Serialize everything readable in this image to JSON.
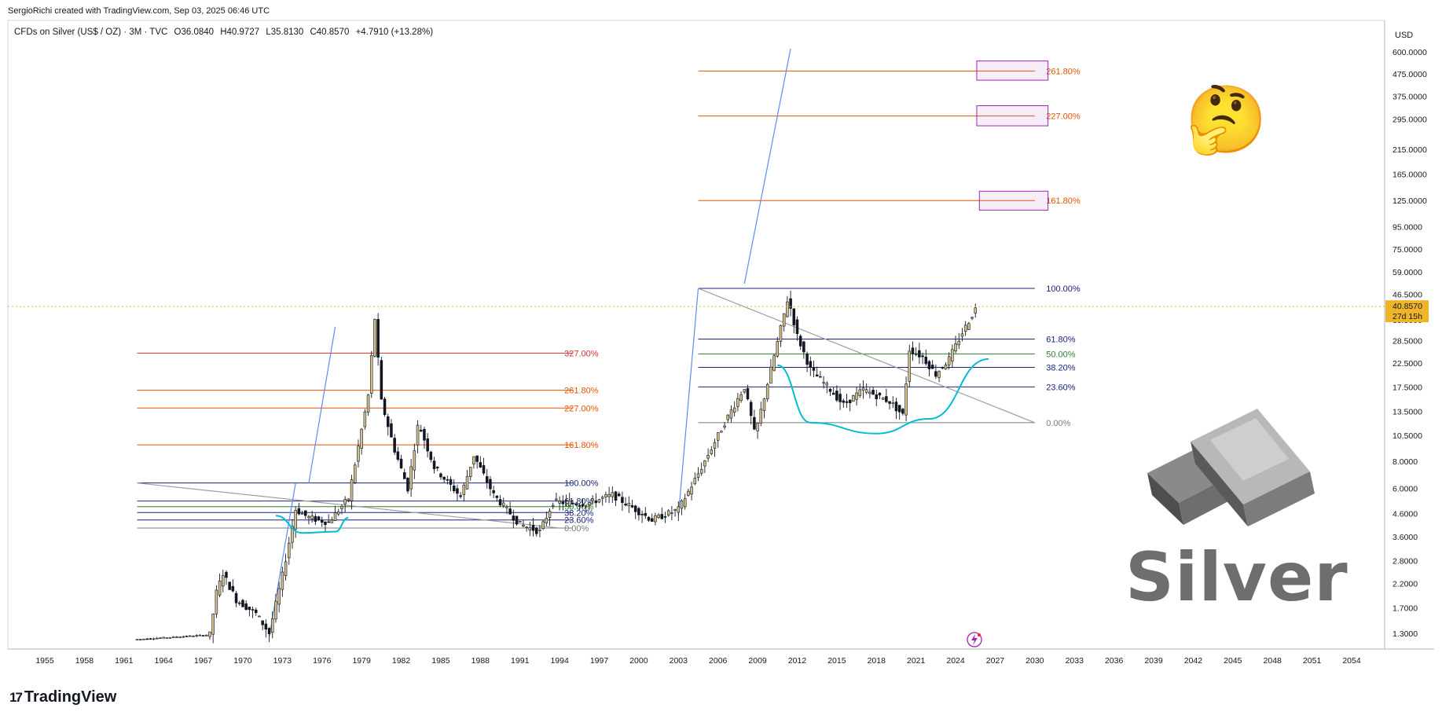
{
  "header": {
    "attribution": "SergioRichi created with TradingView.com, Sep 03, 2025 06:46 UTC"
  },
  "legend": {
    "symbol": "CFDs on Silver (US$ / OZ) · 3M · TVC",
    "open": "O36.0840",
    "high": "H40.9727",
    "low": "L35.8130",
    "close": "C40.8570",
    "change": "+4.7910 (+13.28%)"
  },
  "branding": {
    "logo_mark": "17",
    "logo_text": "TradingView",
    "watermark_word": "Silver",
    "emoji": "🤔"
  },
  "chart_data": {
    "type": "candlestick",
    "title": "CFDs on Silver (US$ / OZ) · 3M · TVC",
    "currency_label": "USD",
    "scale": "log",
    "x_ticks": [
      "1955",
      "1958",
      "1961",
      "1964",
      "1967",
      "1970",
      "1973",
      "1976",
      "1979",
      "1982",
      "1985",
      "1988",
      "1991",
      "1994",
      "1997",
      "2000",
      "2003",
      "2006",
      "2009",
      "2012",
      "2015",
      "2018",
      "2021",
      "2024",
      "2027",
      "2030",
      "2033",
      "2036",
      "2039",
      "2042",
      "2045",
      "2048",
      "2051",
      "2054"
    ],
    "y_ticks": [
      "600.0000",
      "475.0000",
      "375.0000",
      "295.0000",
      "215.0000",
      "165.0000",
      "125.0000",
      "95.0000",
      "75.0000",
      "59.0000",
      "46.5000",
      "35.5000",
      "28.5000",
      "22.5000",
      "17.5000",
      "13.5000",
      "10.5000",
      "8.0000",
      "6.0000",
      "4.6000",
      "3.6000",
      "2.8000",
      "2.2000",
      "1.7000",
      "1.3000"
    ],
    "last_price": {
      "value": "40.8570",
      "countdown": "27d 15h",
      "color": "#f0b429"
    },
    "candle_colors": {
      "up": "#d6c08a",
      "down": "#131722"
    },
    "price_path": [
      {
        "x": 1962.0,
        "y": 1.22
      },
      {
        "x": 1967.5,
        "y": 1.28
      },
      {
        "x": 1968.0,
        "y": 2.0
      },
      {
        "x": 1968.5,
        "y": 2.45
      },
      {
        "x": 1969.5,
        "y": 1.85
      },
      {
        "x": 1971.0,
        "y": 1.6
      },
      {
        "x": 1972.0,
        "y": 1.3
      },
      {
        "x": 1973.0,
        "y": 2.4
      },
      {
        "x": 1974.0,
        "y": 4.8
      },
      {
        "x": 1975.0,
        "y": 4.4
      },
      {
        "x": 1976.5,
        "y": 4.2
      },
      {
        "x": 1978.0,
        "y": 5.4
      },
      {
        "x": 1979.5,
        "y": 16.0
      },
      {
        "x": 1980.0,
        "y": 36.0
      },
      {
        "x": 1980.5,
        "y": 15.0
      },
      {
        "x": 1981.5,
        "y": 9.0
      },
      {
        "x": 1982.5,
        "y": 6.0
      },
      {
        "x": 1983.3,
        "y": 12.0
      },
      {
        "x": 1984.5,
        "y": 7.5
      },
      {
        "x": 1986.5,
        "y": 5.5
      },
      {
        "x": 1987.5,
        "y": 8.5
      },
      {
        "x": 1989.0,
        "y": 5.6
      },
      {
        "x": 1991.0,
        "y": 4.1
      },
      {
        "x": 1992.5,
        "y": 3.8
      },
      {
        "x": 1993.5,
        "y": 5.2
      },
      {
        "x": 1996.0,
        "y": 5.1
      },
      {
        "x": 1998.0,
        "y": 5.6
      },
      {
        "x": 2001.0,
        "y": 4.3
      },
      {
        "x": 2003.0,
        "y": 4.8
      },
      {
        "x": 2004.5,
        "y": 7.0
      },
      {
        "x": 2006.5,
        "y": 12.0
      },
      {
        "x": 2008.0,
        "y": 17.5
      },
      {
        "x": 2008.8,
        "y": 10.5
      },
      {
        "x": 2010.5,
        "y": 28.0
      },
      {
        "x": 2011.3,
        "y": 45.0
      },
      {
        "x": 2012.0,
        "y": 30.0
      },
      {
        "x": 2013.0,
        "y": 21.0
      },
      {
        "x": 2014.5,
        "y": 17.0
      },
      {
        "x": 2015.5,
        "y": 14.5
      },
      {
        "x": 2017.0,
        "y": 17.0
      },
      {
        "x": 2019.0,
        "y": 15.0
      },
      {
        "x": 2020.0,
        "y": 13.0
      },
      {
        "x": 2020.5,
        "y": 26.0
      },
      {
        "x": 2021.5,
        "y": 24.0
      },
      {
        "x": 2022.5,
        "y": 20.0
      },
      {
        "x": 2023.5,
        "y": 23.5
      },
      {
        "x": 2024.5,
        "y": 31.0
      },
      {
        "x": 2025.6,
        "y": 40.857
      }
    ],
    "fib_small": {
      "x_range": [
        1962,
        1995
      ],
      "label_x": 1994,
      "levels": [
        {
          "label": "327.00%",
          "price": 25.0,
          "color": "#d32f2f"
        },
        {
          "label": "261.80%",
          "price": 16.9,
          "color": "#e65100"
        },
        {
          "label": "227.00%",
          "price": 14.0,
          "color": "#e65100"
        },
        {
          "label": "161.80%",
          "price": 9.5,
          "color": "#e65100"
        },
        {
          "label": "100.00%",
          "price": 6.35,
          "color": "#1a237e"
        },
        {
          "label": "61.80%",
          "price": 5.25,
          "color": "#1a237e"
        },
        {
          "label": "50.00%",
          "price": 4.95,
          "color": "#2e7d32"
        },
        {
          "label": "38.20%",
          "price": 4.65,
          "color": "#1a237e"
        },
        {
          "label": "23.60%",
          "price": 4.3,
          "color": "#1a237e"
        },
        {
          "label": "0.00%",
          "price": 3.95,
          "color": "#787b86"
        }
      ]
    },
    "fib_big": {
      "x_range": [
        2004.5,
        2030
      ],
      "label_x": 2030.5,
      "levels": [
        {
          "label": "261.80%",
          "price": 490,
          "color": "#e65100"
        },
        {
          "label": "227.00%",
          "price": 305,
          "color": "#e65100"
        },
        {
          "label": "161.80%",
          "price": 125,
          "color": "#e65100"
        },
        {
          "label": "100.00%",
          "price": 49.5,
          "color": "#1a237e"
        },
        {
          "label": "61.80%",
          "price": 29.0,
          "color": "#1a237e"
        },
        {
          "label": "50.00%",
          "price": 24.8,
          "color": "#2e7d32"
        },
        {
          "label": "38.20%",
          "price": 21.5,
          "color": "#1a237e"
        },
        {
          "label": "23.60%",
          "price": 17.5,
          "color": "#1a237e"
        },
        {
          "label": "0.00%",
          "price": 12.0,
          "color": "#787b86"
        }
      ]
    },
    "target_boxes": [
      {
        "x": [
          2025.6,
          2031
        ],
        "y": [
          445,
          545
        ]
      },
      {
        "x": [
          2025.6,
          2031
        ],
        "y": [
          275,
          340
        ]
      },
      {
        "x": [
          2025.8,
          2031
        ],
        "y": [
          113,
          138
        ]
      }
    ],
    "trend_lines": [
      {
        "from": [
          1962.0,
          6.35
        ],
        "to": [
          1994.0,
          3.95
        ],
        "color": "#9e9e9e"
      },
      {
        "from": [
          2004.5,
          49.5
        ],
        "to": [
          2030.0,
          12.0
        ],
        "color": "#9e9e9e"
      },
      {
        "from": [
          1972.0,
          1.25
        ],
        "to": [
          1974.0,
          6.35
        ],
        "color": "#5b8def"
      },
      {
        "from": [
          1975.0,
          6.35
        ],
        "to": [
          1977.0,
          33.0
        ],
        "color": "#5b8def"
      },
      {
        "from": [
          2003.0,
          4.5
        ],
        "to": [
          2004.5,
          49.5
        ],
        "color": "#5b8def"
      },
      {
        "from": [
          2008.0,
          52.0
        ],
        "to": [
          2011.5,
          620.0
        ],
        "color": "#5b8def"
      }
    ],
    "cup_arcs": [
      {
        "points": [
          [
            1972.5,
            4.5
          ],
          [
            1974.5,
            3.75
          ],
          [
            1977.0,
            3.8
          ],
          [
            1978.0,
            4.4
          ]
        ],
        "color": "#00bcd4"
      },
      {
        "points": [
          [
            2010.5,
            22.0
          ],
          [
            2013.0,
            12.0
          ],
          [
            2018.0,
            10.7
          ],
          [
            2022.0,
            12.5
          ],
          [
            2026.5,
            23.5
          ]
        ],
        "color": "#00bcd4"
      }
    ]
  }
}
